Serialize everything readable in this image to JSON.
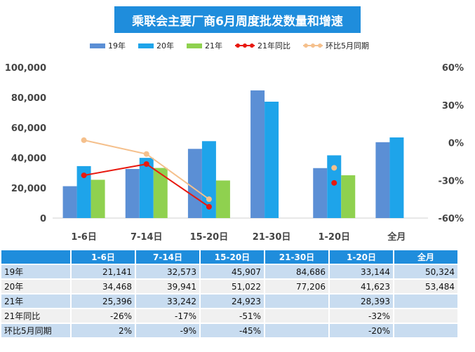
{
  "chart_data": {
    "type": "bar",
    "title": "乘联会主要厂商6月周度批发数量和增速",
    "categories": [
      "1-6日",
      "7-14日",
      "15-20日",
      "21-30日",
      "1-20日",
      "全月"
    ],
    "series": [
      {
        "name": "19年",
        "kind": "bar",
        "color": "#5b8fd5",
        "values": [
          21141,
          32573,
          45907,
          84686,
          33144,
          50324
        ]
      },
      {
        "name": "20年",
        "kind": "bar",
        "color": "#1ea4ea",
        "values": [
          34468,
          39941,
          51022,
          77206,
          41623,
          53484
        ]
      },
      {
        "name": "21年",
        "kind": "bar",
        "color": "#8fd14f",
        "values": [
          25396,
          33242,
          24923,
          null,
          28393,
          null
        ]
      },
      {
        "name": "21年同比",
        "kind": "line",
        "axis": "right",
        "color": "#e8190f",
        "values": [
          -26,
          -17,
          -51,
          null,
          -32,
          null
        ]
      },
      {
        "name": "环比5月同期",
        "kind": "line",
        "axis": "right",
        "color": "#f5c08c",
        "values": [
          2,
          -9,
          -45,
          null,
          -20,
          null
        ]
      }
    ],
    "y_left": {
      "min": 0,
      "max": 100000,
      "ticks": [
        "0",
        "20,000",
        "40,000",
        "60,000",
        "80,000",
        "100,000"
      ]
    },
    "y_right": {
      "min": -60,
      "max": 60,
      "ticks": [
        "-60%",
        "-30%",
        "0%",
        "30%",
        "60%"
      ]
    },
    "legend_position": "top",
    "grid": false
  },
  "table": {
    "headers": [
      "",
      "1-6日",
      "7-14日",
      "15-20日",
      "21-30日",
      "1-20日",
      "全月"
    ],
    "rows": [
      {
        "label": "19年",
        "cells": [
          "21,141",
          "32,573",
          "45,907",
          "84,686",
          "33,144",
          "50,324"
        ]
      },
      {
        "label": "20年",
        "cells": [
          "34,468",
          "39,941",
          "51,022",
          "77,206",
          "41,623",
          "53,484"
        ]
      },
      {
        "label": "21年",
        "cells": [
          "25,396",
          "33,242",
          "24,923",
          "",
          "28,393",
          ""
        ]
      },
      {
        "label": "21年同比",
        "cells": [
          "-26%",
          "-17%",
          "-51%",
          "",
          "-32%",
          ""
        ]
      },
      {
        "label": "环比5月同期",
        "cells": [
          "2%",
          "-9%",
          "-45%",
          "",
          "-20%",
          ""
        ]
      }
    ]
  }
}
